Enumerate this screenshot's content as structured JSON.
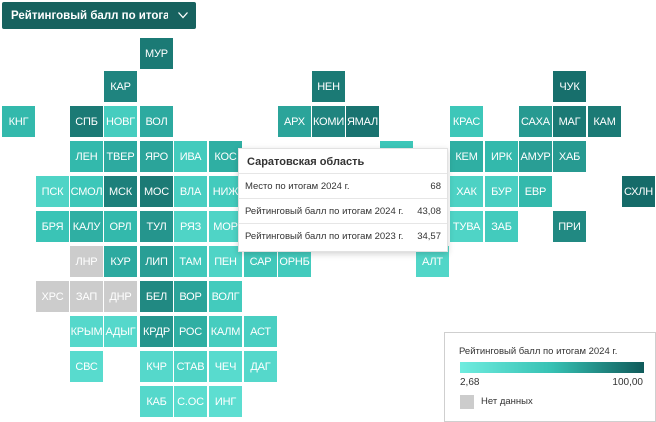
{
  "indicator_selector": {
    "label": "Рейтинговый балл по итогам ..."
  },
  "map": {
    "regions": [
      {
        "code": "МУР",
        "value": 85
      },
      {
        "code": "КАР",
        "value": 80
      },
      {
        "code": "НЕН",
        "value": 85
      },
      {
        "code": "ЧУК",
        "value": 90
      },
      {
        "code": "КНГ",
        "value": 55
      },
      {
        "code": "СПБ",
        "value": 85
      },
      {
        "code": "НОВГ",
        "value": 38
      },
      {
        "code": "ВОЛ",
        "value": 62
      },
      {
        "code": "АРХ",
        "value": 65
      },
      {
        "code": "КОМИ",
        "value": 80
      },
      {
        "code": "ЯМАЛ",
        "value": 88
      },
      {
        "code": "КРАС",
        "value": 45
      },
      {
        "code": "САХА",
        "value": 70
      },
      {
        "code": "МАГ",
        "value": 85
      },
      {
        "code": "КАМ",
        "value": 85
      },
      {
        "code": "ЛЕН",
        "value": 55
      },
      {
        "code": "ТВЕР",
        "value": 62
      },
      {
        "code": "ЯРО",
        "value": 65
      },
      {
        "code": "ИВА",
        "value": 40
      },
      {
        "code": "КОС",
        "value": 60
      },
      {
        "code": "НИЖ",
        "value": 40
      },
      {
        "code": "",
        "value": 45
      },
      {
        "code": "КЕМ",
        "value": 60
      },
      {
        "code": "ИРК",
        "value": 55
      },
      {
        "code": "АМУР",
        "value": 68
      },
      {
        "code": "ХАБ",
        "value": 70
      },
      {
        "code": "ПСК",
        "value": 30
      },
      {
        "code": "СМОЛ",
        "value": 45
      },
      {
        "code": "МСК",
        "value": 82
      },
      {
        "code": "МОС",
        "value": 85
      },
      {
        "code": "ВЛА",
        "value": 35
      },
      {
        "code": "ХАК",
        "value": 32
      },
      {
        "code": "БУР",
        "value": 35
      },
      {
        "code": "ЕВР",
        "value": 55
      },
      {
        "code": "СХЛН",
        "value": 92
      },
      {
        "code": "БРЯ",
        "value": 48
      },
      {
        "code": "КАЛУ",
        "value": 60
      },
      {
        "code": "ОРЛ",
        "value": 55
      },
      {
        "code": "ТУЛ",
        "value": 72
      },
      {
        "code": "РЯЗ",
        "value": 30
      },
      {
        "code": "МОР",
        "value": 30
      },
      {
        "code": "ТУВА",
        "value": 30
      },
      {
        "code": "ЗАБ",
        "value": 40
      },
      {
        "code": "ПРИ",
        "value": 78
      },
      {
        "code": "ЛНР",
        "value": null
      },
      {
        "code": "КУР",
        "value": 62
      },
      {
        "code": "ЛИП",
        "value": 68
      },
      {
        "code": "ТАМ",
        "value": 42
      },
      {
        "code": "ПЕН",
        "value": 30
      },
      {
        "code": "САР",
        "value": 43.08
      },
      {
        "code": "ОРНБ",
        "value": 40
      },
      {
        "code": "АЛТ",
        "value": 28
      },
      {
        "code": "ХРС",
        "value": null
      },
      {
        "code": "ЗАП",
        "value": null
      },
      {
        "code": "ДНР",
        "value": null
      },
      {
        "code": "БЕЛ",
        "value": 78
      },
      {
        "code": "ВОР",
        "value": 65
      },
      {
        "code": "ВОЛГ",
        "value": 40
      },
      {
        "code": "КРЫМ",
        "value": 25
      },
      {
        "code": "АДЫГ",
        "value": 25
      },
      {
        "code": "КРДР",
        "value": 72
      },
      {
        "code": "РОС",
        "value": 60
      },
      {
        "code": "КАЛМ",
        "value": 38
      },
      {
        "code": "АСТ",
        "value": 35
      },
      {
        "code": "СВС",
        "value": 22
      },
      {
        "code": "КЧР",
        "value": 25
      },
      {
        "code": "СТАВ",
        "value": 30
      },
      {
        "code": "ЧЕЧ",
        "value": 22
      },
      {
        "code": "ДАГ",
        "value": 25
      },
      {
        "code": "КАБ",
        "value": 25
      },
      {
        "code": "С.ОС",
        "value": 20
      },
      {
        "code": "ИНГ",
        "value": 18
      }
    ]
  },
  "tooltip": {
    "title": "Саратовская область",
    "rows": [
      {
        "label": "Место по итогам 2024 г.",
        "value": "68"
      },
      {
        "label": "Рейтинговый балл по итогам 2024 г.",
        "value": "43,08"
      },
      {
        "label": "Рейтинговый балл по итогам 2023 г.",
        "value": "34,57"
      }
    ]
  },
  "legend": {
    "title": "Рейтинговый балл по итогам 2024 г.",
    "min_label": "2,68",
    "max_label": "100,00",
    "min_value": 2.68,
    "max_value": 100,
    "no_data_label": "Нет данных"
  },
  "colors": {
    "scale_low": "#6fecdf",
    "scale_mid": "#36c1b3",
    "scale_high": "#0f5a5a",
    "no_data": "#cccccc",
    "selector_bg": "#17625f"
  }
}
